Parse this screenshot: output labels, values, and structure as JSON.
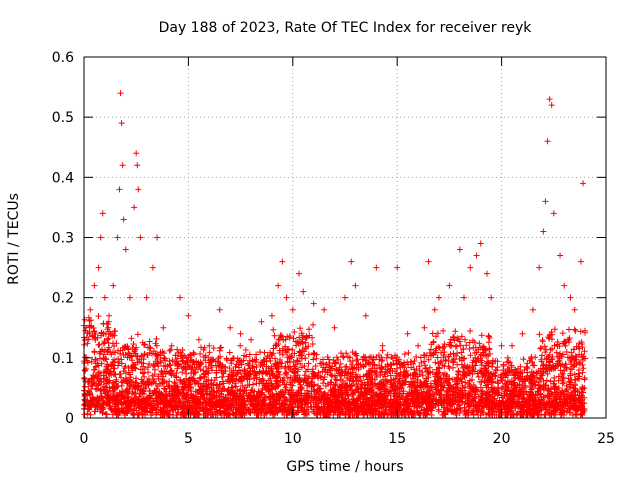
{
  "chart_data": {
    "type": "scatter",
    "title": "Day 188 of 2023, Rate Of TEC Index for receiver reyk",
    "xlabel": "GPS time / hours",
    "ylabel": "ROTI / TECUs",
    "xlim": [
      0,
      25
    ],
    "ylim": [
      0,
      0.6
    ],
    "x_ticks": [
      0,
      5,
      10,
      15,
      20,
      25
    ],
    "y_ticks": [
      0,
      0.1,
      0.2,
      0.3,
      0.4,
      0.5,
      0.6
    ],
    "x_tick_labels": [
      "0",
      "5",
      "10",
      "15",
      "20",
      "25"
    ],
    "y_tick_labels": [
      "0",
      "0.1",
      "0.2",
      "0.3",
      "0.4",
      "0.5",
      "0.6"
    ],
    "grid": true,
    "marker": "+",
    "color": "#ff0000",
    "series": [
      {
        "x": [
          0.1,
          0.3,
          0.5,
          0.7,
          0.8,
          0.9,
          1.0,
          1.2,
          1.4,
          1.6,
          1.7,
          1.75,
          1.8,
          1.85,
          1.9,
          2.0,
          2.2,
          2.4,
          2.5,
          2.55,
          2.6,
          2.7,
          3.0,
          3.3,
          3.5,
          3.8,
          4.2,
          4.6,
          5.0,
          5.5,
          6.0,
          6.5,
          7.0,
          7.5,
          8.0,
          8.5,
          9.0,
          9.3,
          9.5,
          9.7,
          10.0,
          10.3,
          10.5,
          11.0,
          11.5,
          12.0,
          12.5,
          12.8,
          13.0,
          13.5,
          14.0,
          14.3,
          14.5,
          15.0,
          15.5,
          16.0,
          16.3,
          16.5,
          16.8,
          17.0,
          17.5,
          18.0,
          18.2,
          18.5,
          18.8,
          19.0,
          19.3,
          19.5,
          20.0,
          20.3,
          20.5,
          21.0,
          21.5,
          21.8,
          22.0,
          22.1,
          22.2,
          22.3,
          22.4,
          22.5,
          22.8,
          23.0,
          23.3,
          23.5,
          23.8,
          23.9
        ],
        "y": [
          0.15,
          0.18,
          0.22,
          0.25,
          0.3,
          0.34,
          0.2,
          0.17,
          0.22,
          0.3,
          0.38,
          0.54,
          0.49,
          0.42,
          0.33,
          0.28,
          0.2,
          0.35,
          0.44,
          0.42,
          0.38,
          0.3,
          0.2,
          0.25,
          0.3,
          0.15,
          0.12,
          0.2,
          0.17,
          0.13,
          0.12,
          0.18,
          0.15,
          0.14,
          0.13,
          0.16,
          0.17,
          0.22,
          0.26,
          0.2,
          0.18,
          0.24,
          0.21,
          0.19,
          0.18,
          0.15,
          0.2,
          0.26,
          0.22,
          0.17,
          0.25,
          0.12,
          0.1,
          0.25,
          0.14,
          0.12,
          0.15,
          0.26,
          0.18,
          0.2,
          0.22,
          0.28,
          0.2,
          0.25,
          0.27,
          0.29,
          0.24,
          0.2,
          0.12,
          0.1,
          0.12,
          0.14,
          0.18,
          0.25,
          0.31,
          0.36,
          0.46,
          0.53,
          0.52,
          0.34,
          0.27,
          0.22,
          0.2,
          0.18,
          0.26,
          0.39
        ]
      }
    ]
  }
}
